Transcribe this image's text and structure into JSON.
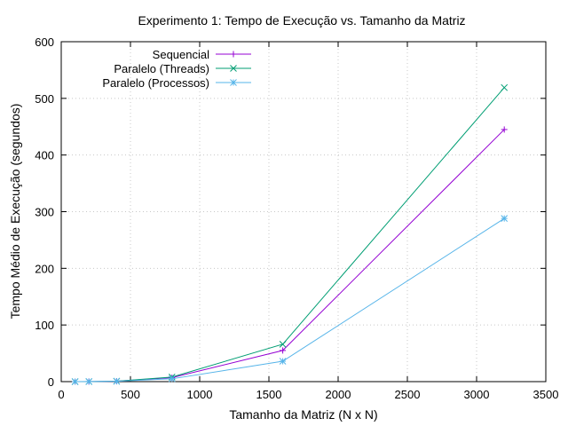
{
  "chart_data": {
    "type": "line",
    "title": "Experimento 1: Tempo de Execução vs. Tamanho da Matriz",
    "xlabel": "Tamanho da Matriz (N x N)",
    "ylabel": "Tempo Médio de Execução (segundos)",
    "xlim": [
      0,
      3500
    ],
    "ylim": [
      0,
      600
    ],
    "xticks": [
      0,
      500,
      1000,
      1500,
      2000,
      2500,
      3000,
      3500
    ],
    "yticks": [
      0,
      100,
      200,
      300,
      400,
      500,
      600
    ],
    "grid": true,
    "legend_position": "top-left",
    "series": [
      {
        "name": "Sequencial",
        "color": "#9400d3",
        "marker": "plus",
        "x": [
          100,
          200,
          400,
          800,
          1600,
          3200
        ],
        "y": [
          0.01,
          0.1,
          0.7,
          7,
          55,
          445
        ]
      },
      {
        "name": "Paralelo (Threads)",
        "color": "#009e73",
        "marker": "cross",
        "x": [
          100,
          200,
          400,
          800,
          1600,
          3200
        ],
        "y": [
          0.02,
          0.1,
          0.8,
          8,
          66,
          519
        ]
      },
      {
        "name": "Paralelo (Processos)",
        "color": "#56b4e9",
        "marker": "star",
        "x": [
          100,
          200,
          400,
          800,
          1600,
          3200
        ],
        "y": [
          0.05,
          0.2,
          0.6,
          5,
          36,
          288
        ]
      }
    ]
  }
}
